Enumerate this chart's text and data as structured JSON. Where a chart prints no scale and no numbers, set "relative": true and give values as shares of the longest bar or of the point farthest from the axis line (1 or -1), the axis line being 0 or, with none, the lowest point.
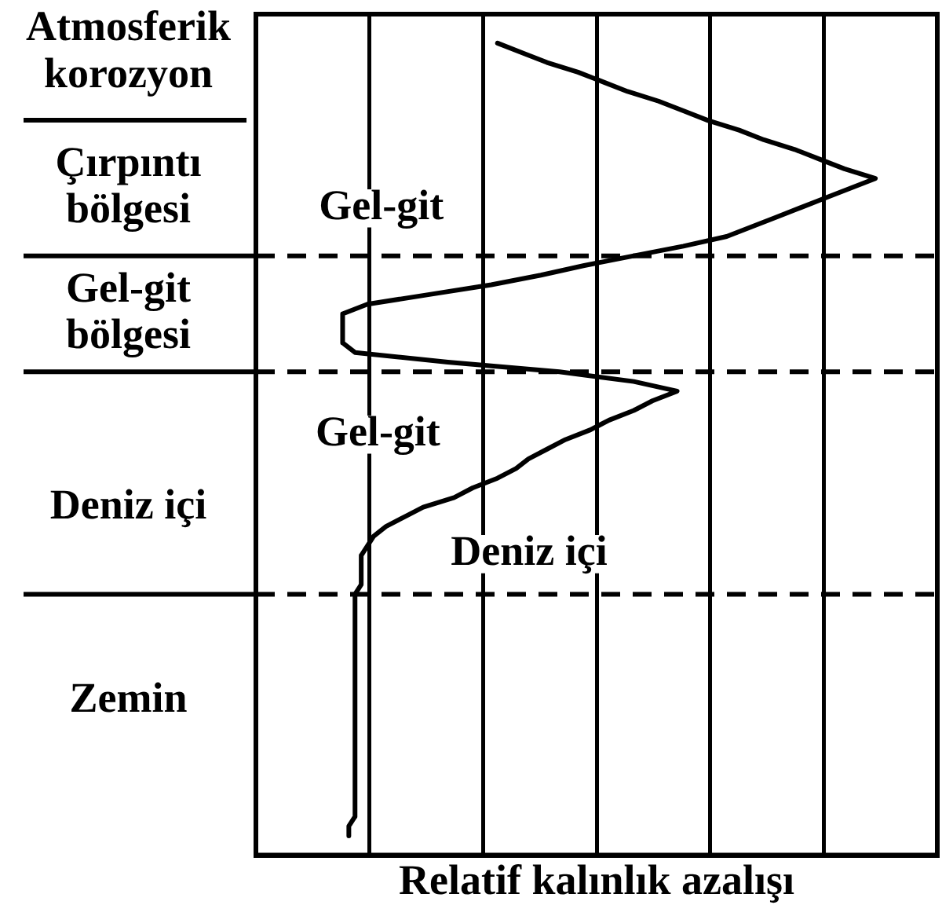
{
  "chart_data": {
    "type": "line",
    "orientation": "horizontal",
    "relative": true,
    "xlabel": "Relatif kalınlık azalışı",
    "categories": [
      null,
      null,
      null,
      null,
      "Atmosferik korozyon",
      null,
      null,
      null,
      null,
      null,
      null,
      null,
      null,
      null,
      null,
      null,
      null,
      null,
      "Çırpıntı bölgesi",
      null,
      null,
      null,
      null,
      null,
      null,
      null,
      null,
      null,
      null,
      null,
      null,
      "Gel-git bölgesi",
      null,
      null,
      null,
      null,
      null,
      null,
      null,
      null,
      null,
      null,
      null,
      null,
      null,
      null,
      null,
      null,
      null,
      null,
      null,
      "Deniz içi",
      null,
      null,
      null,
      null,
      null,
      null,
      null,
      null,
      null,
      null,
      null,
      null,
      null,
      null,
      null,
      null,
      null,
      null,
      null,
      "Zemin",
      null,
      null,
      null,
      null,
      null,
      null,
      null,
      null,
      null,
      null,
      null,
      null,
      null,
      null,
      null,
      null
    ],
    "values": [
      null,
      null,
      null,
      0.39,
      0.43,
      0.47,
      0.52,
      0.56,
      0.6,
      0.65,
      0.69,
      0.73,
      0.78,
      0.82,
      0.87,
      0.91,
      0.95,
      1,
      0.96,
      0.92,
      0.88,
      0.84,
      0.8,
      0.76,
      0.69,
      0.61,
      0.53,
      0.46,
      0.38,
      0.28,
      0.18,
      0.14,
      0.14,
      0.14,
      0.14,
      0.16,
      0.31,
      0.49,
      0.61,
      0.68,
      0.64,
      0.61,
      0.57,
      0.54,
      0.5,
      0.47,
      0.44,
      0.42,
      0.39,
      0.35,
      0.32,
      0.27,
      0.24,
      0.21,
      0.19,
      0.18,
      0.17,
      0.17,
      0.17,
      0.17,
      0.16,
      0.16,
      0.16,
      0.16,
      0.16,
      0.16,
      0.16,
      0.16,
      0.16,
      0.16,
      0.16,
      0.16,
      0.16,
      0.16,
      0.16,
      0.16,
      0.16,
      0.16,
      0.16,
      0.16,
      0.16,
      0.16,
      0.16,
      0.16,
      0.15,
      0.15,
      null,
      null
    ],
    "color": "#000000",
    "grid": "x",
    "marker": "none",
    "annotations": [
      "Gel-git",
      "Gel-git",
      "Deniz içi"
    ]
  }
}
